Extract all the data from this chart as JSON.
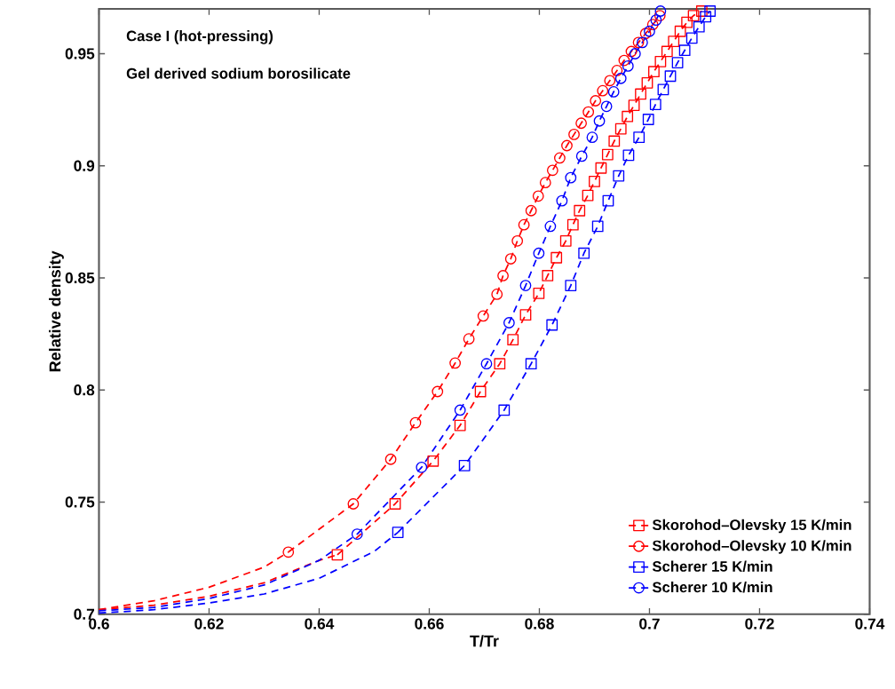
{
  "chart_data": {
    "type": "line",
    "xlabel": "T/Tr",
    "ylabel": "Relative density",
    "annotations": [
      "Case I (hot-pressing)",
      "Gel derived sodium borosilicate"
    ],
    "xlim": [
      0.6,
      0.74
    ],
    "ylim": [
      0.7,
      0.97
    ],
    "xticks": [
      0.6,
      0.62,
      0.64,
      0.66,
      0.68,
      0.7,
      0.72,
      0.74
    ],
    "yticks": [
      0.7,
      0.75,
      0.8,
      0.85,
      0.9,
      0.95
    ],
    "grid": false,
    "legend": "bottom right",
    "line_style": "dashed",
    "series": [
      {
        "name": "Skorohod–Olevsky 15 K/min",
        "color": "#ff0000",
        "marker": "square",
        "x": [
          0.6433,
          0.6538,
          0.6607,
          0.6656,
          0.6693,
          0.6728,
          0.6752,
          0.6775,
          0.6799,
          0.6815,
          0.6831,
          0.6848,
          0.6861,
          0.6873,
          0.6888,
          0.69,
          0.6912,
          0.6924,
          0.6936,
          0.6948,
          0.696,
          0.6972,
          0.6984,
          0.6996,
          0.7008,
          0.702,
          0.7032,
          0.7044,
          0.7056,
          0.7068,
          0.708,
          0.7095
        ],
        "values": [
          0.7265,
          0.7492,
          0.7683,
          0.7842,
          0.7993,
          0.8117,
          0.8224,
          0.8335,
          0.8431,
          0.851,
          0.859,
          0.8665,
          0.8737,
          0.88,
          0.8868,
          0.893,
          0.899,
          0.905,
          0.911,
          0.9165,
          0.922,
          0.927,
          0.932,
          0.937,
          0.942,
          0.9465,
          0.951,
          0.9555,
          0.96,
          0.964,
          0.967,
          0.969
        ]
      },
      {
        "name": "Skorohod–Olevsky 10 K/min",
        "color": "#ff0000",
        "marker": "circle",
        "x": [
          0.6344,
          0.6462,
          0.653,
          0.6575,
          0.6615,
          0.6647,
          0.6672,
          0.6698,
          0.6723,
          0.6734,
          0.6748,
          0.676,
          0.6772,
          0.6785,
          0.6798,
          0.6811,
          0.6824,
          0.6837,
          0.685,
          0.6863,
          0.6876,
          0.6889,
          0.6902,
          0.6915,
          0.6928,
          0.6941,
          0.6954,
          0.6967,
          0.698,
          0.6993,
          0.7006,
          0.7019
        ],
        "values": [
          0.7277,
          0.7492,
          0.7691,
          0.7854,
          0.7993,
          0.812,
          0.8228,
          0.833,
          0.8427,
          0.851,
          0.8585,
          0.8665,
          0.8737,
          0.88,
          0.8865,
          0.8925,
          0.898,
          0.9035,
          0.909,
          0.914,
          0.919,
          0.924,
          0.929,
          0.9335,
          0.938,
          0.9425,
          0.947,
          0.951,
          0.955,
          0.959,
          0.963,
          0.967
        ]
      },
      {
        "name": "Scherer 15 K/min",
        "color": "#0000ff",
        "marker": "square",
        "x": [
          0.6543,
          0.6664,
          0.6736,
          0.6785,
          0.6823,
          0.6857,
          0.6881,
          0.6906,
          0.6925,
          0.6944,
          0.6962,
          0.6981,
          0.6998,
          0.7011,
          0.7025,
          0.7038,
          0.7051,
          0.7064,
          0.7077,
          0.709,
          0.7102,
          0.711
        ],
        "values": [
          0.7365,
          0.7663,
          0.791,
          0.8117,
          0.829,
          0.8466,
          0.861,
          0.873,
          0.8844,
          0.8955,
          0.9047,
          0.9127,
          0.9207,
          0.9274,
          0.934,
          0.94,
          0.946,
          0.9515,
          0.957,
          0.962,
          0.9665,
          0.969
        ]
      },
      {
        "name": "Scherer 10 K/min",
        "color": "#0000ff",
        "marker": "circle",
        "x": [
          0.6469,
          0.6586,
          0.6656,
          0.6704,
          0.6745,
          0.6775,
          0.6799,
          0.682,
          0.6841,
          0.6857,
          0.6877,
          0.6896,
          0.6909,
          0.6922,
          0.6935,
          0.6948,
          0.6961,
          0.6974,
          0.6987,
          0.7,
          0.7012,
          0.702
        ],
        "values": [
          0.7357,
          0.7655,
          0.791,
          0.8117,
          0.83,
          0.8466,
          0.861,
          0.873,
          0.8844,
          0.8947,
          0.9043,
          0.9127,
          0.92,
          0.9265,
          0.933,
          0.939,
          0.9445,
          0.95,
          0.955,
          0.96,
          0.965,
          0.969
        ]
      },
      {
        "color": "#ff0000",
        "marker": "none",
        "x": [
          0.6,
          0.61,
          0.62,
          0.63,
          0.64,
          0.6433
        ],
        "values": [
          0.702,
          0.704,
          0.708,
          0.714,
          0.724,
          0.7265
        ]
      },
      {
        "color": "#ff0000",
        "marker": "none",
        "x": [
          0.6,
          0.61,
          0.62,
          0.63,
          0.6344
        ],
        "values": [
          0.702,
          0.706,
          0.712,
          0.721,
          0.7277
        ]
      },
      {
        "color": "#0000ff",
        "marker": "none",
        "x": [
          0.6,
          0.61,
          0.62,
          0.63,
          0.64,
          0.65,
          0.6543
        ],
        "values": [
          0.7005,
          0.702,
          0.705,
          0.709,
          0.716,
          0.728,
          0.7365
        ]
      },
      {
        "color": "#0000ff",
        "marker": "none",
        "x": [
          0.6,
          0.61,
          0.62,
          0.63,
          0.64,
          0.6469
        ],
        "values": [
          0.7015,
          0.703,
          0.707,
          0.713,
          0.724,
          0.7357
        ]
      }
    ]
  }
}
